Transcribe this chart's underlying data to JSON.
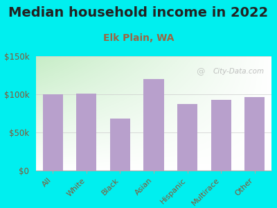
{
  "title": "Median household income in 2022",
  "subtitle": "Elk Plain, WA",
  "categories": [
    "All",
    "White",
    "Black",
    "Asian",
    "Hispanic",
    "Multirace",
    "Other"
  ],
  "values": [
    100000,
    101000,
    68000,
    120000,
    87000,
    93000,
    96000
  ],
  "bar_color": "#b8a0cc",
  "background_outer": "#00EFEF",
  "background_inner": "#e8f5e2",
  "ylim": [
    0,
    150000
  ],
  "yticks": [
    0,
    50000,
    100000,
    150000
  ],
  "ytick_labels": [
    "$0",
    "$50k",
    "$100k",
    "$150k"
  ],
  "title_fontsize": 14,
  "subtitle_fontsize": 10,
  "subtitle_color": "#996644",
  "tick_color": "#885533",
  "watermark": "City-Data.com",
  "title_color": "#222222",
  "title_fontweight": "bold"
}
